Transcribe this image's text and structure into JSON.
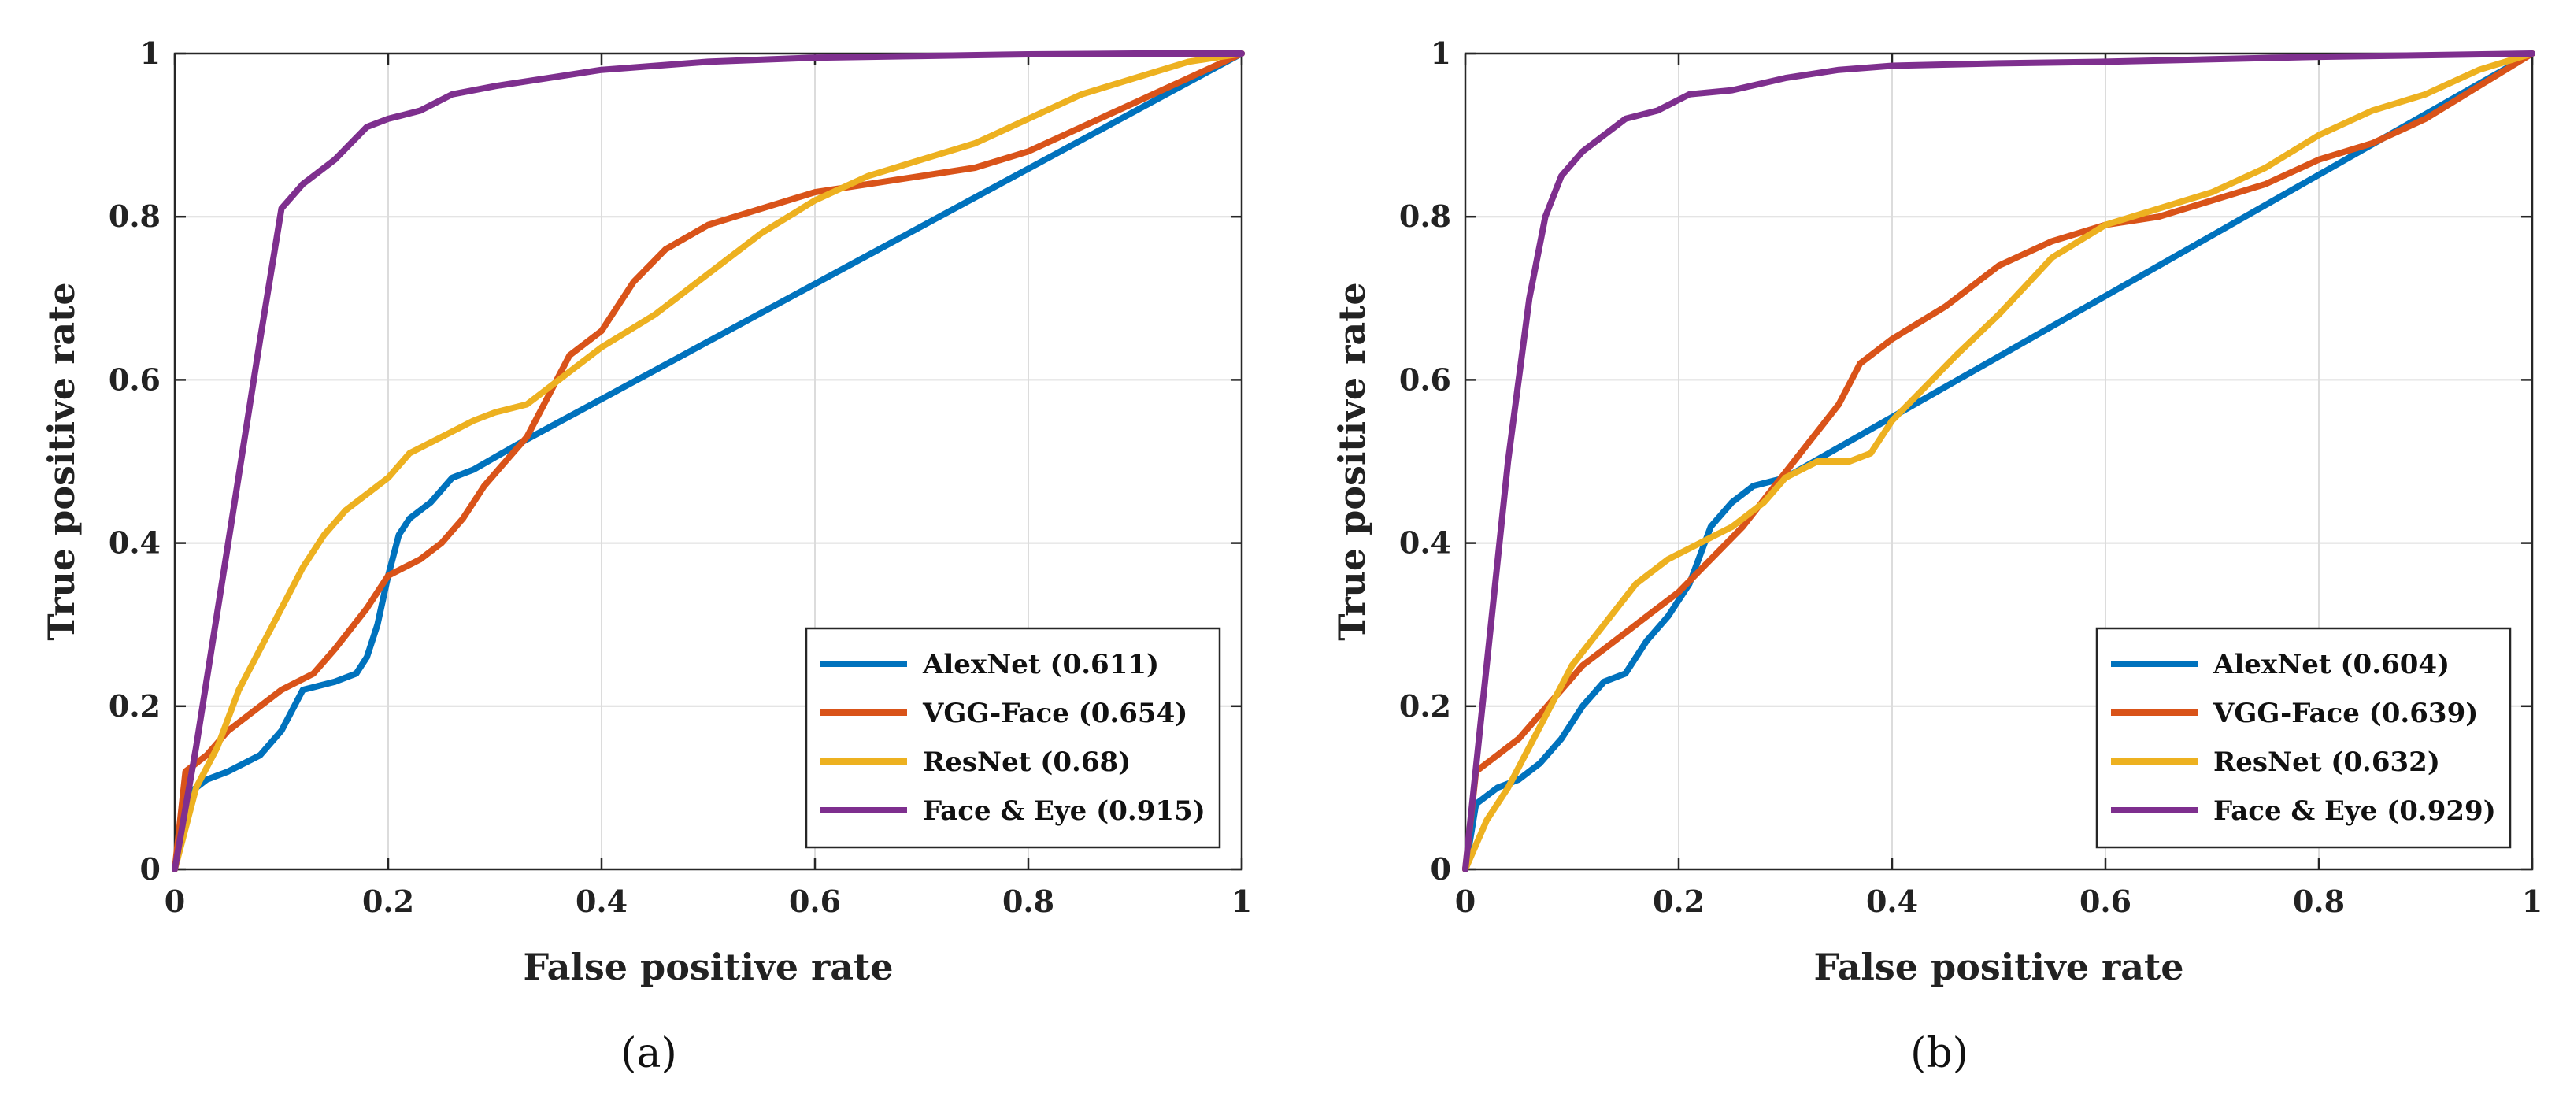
{
  "chart_data": [
    {
      "type": "line",
      "panel_label": "(a)",
      "xlabel": "False positive rate",
      "ylabel": "True positive rate",
      "xlim": [
        0,
        1
      ],
      "ylim": [
        0,
        1
      ],
      "xticks": [
        0,
        0.2,
        0.4,
        0.6,
        0.8,
        1
      ],
      "yticks": [
        0,
        0.2,
        0.4,
        0.6,
        0.8,
        1
      ],
      "xtick_labels": [
        "0",
        "0.2",
        "0.4",
        "0.6",
        "0.8",
        "1"
      ],
      "ytick_labels": [
        "0",
        "0.2",
        "0.4",
        "0.6",
        "0.8",
        "1"
      ],
      "grid": true,
      "legend_position": "bottom-right",
      "series": [
        {
          "name": "AlexNet (0.611)",
          "color": "#0072BD",
          "x": [
            0,
            0.01,
            0.03,
            0.05,
            0.08,
            0.1,
            0.12,
            0.15,
            0.17,
            0.18,
            0.19,
            0.2,
            0.21,
            0.22,
            0.24,
            0.26,
            0.28,
            0.32,
            1.0
          ],
          "y": [
            0,
            0.09,
            0.11,
            0.12,
            0.14,
            0.17,
            0.22,
            0.23,
            0.24,
            0.26,
            0.3,
            0.36,
            0.41,
            0.43,
            0.45,
            0.48,
            0.49,
            0.52,
            1.0
          ]
        },
        {
          "name": "VGG-Face (0.654)",
          "color": "#D95319",
          "x": [
            0,
            0.01,
            0.03,
            0.05,
            0.08,
            0.1,
            0.13,
            0.15,
            0.18,
            0.2,
            0.23,
            0.25,
            0.27,
            0.29,
            0.31,
            0.33,
            0.35,
            0.37,
            0.4,
            0.43,
            0.46,
            0.5,
            0.55,
            0.6,
            0.65,
            0.7,
            0.75,
            0.8,
            0.85,
            0.9,
            0.95,
            1.0
          ],
          "y": [
            0,
            0.12,
            0.14,
            0.17,
            0.2,
            0.22,
            0.24,
            0.27,
            0.32,
            0.36,
            0.38,
            0.4,
            0.43,
            0.47,
            0.5,
            0.53,
            0.58,
            0.63,
            0.66,
            0.72,
            0.76,
            0.79,
            0.81,
            0.83,
            0.84,
            0.85,
            0.86,
            0.88,
            0.91,
            0.94,
            0.97,
            1.0
          ]
        },
        {
          "name": "ResNet (0.68)",
          "color": "#EDB120",
          "x": [
            0,
            0.02,
            0.04,
            0.06,
            0.08,
            0.1,
            0.12,
            0.14,
            0.16,
            0.18,
            0.2,
            0.22,
            0.25,
            0.28,
            0.3,
            0.33,
            0.35,
            0.38,
            0.4,
            0.45,
            0.5,
            0.55,
            0.6,
            0.65,
            0.7,
            0.75,
            0.8,
            0.85,
            0.9,
            0.95,
            1.0
          ],
          "y": [
            0,
            0.1,
            0.15,
            0.22,
            0.27,
            0.32,
            0.37,
            0.41,
            0.44,
            0.46,
            0.48,
            0.51,
            0.53,
            0.55,
            0.56,
            0.57,
            0.59,
            0.62,
            0.64,
            0.68,
            0.73,
            0.78,
            0.82,
            0.85,
            0.87,
            0.89,
            0.92,
            0.95,
            0.97,
            0.99,
            1.0
          ]
        },
        {
          "name": "Face & Eye (0.915)",
          "color": "#7E2F8E",
          "x": [
            0,
            0.02,
            0.05,
            0.08,
            0.1,
            0.12,
            0.15,
            0.18,
            0.2,
            0.23,
            0.26,
            0.3,
            0.35,
            0.4,
            0.5,
            0.6,
            0.7,
            0.8,
            0.9,
            1.0
          ],
          "y": [
            0,
            0.15,
            0.4,
            0.65,
            0.81,
            0.84,
            0.87,
            0.91,
            0.92,
            0.93,
            0.95,
            0.96,
            0.97,
            0.98,
            0.99,
            0.995,
            0.997,
            0.999,
            1.0,
            1.0
          ]
        }
      ]
    },
    {
      "type": "line",
      "panel_label": "(b)",
      "xlabel": "False positive rate",
      "ylabel": "True positive rate",
      "xlim": [
        0,
        1
      ],
      "ylim": [
        0,
        1
      ],
      "xticks": [
        0,
        0.2,
        0.4,
        0.6,
        0.8,
        1
      ],
      "yticks": [
        0,
        0.2,
        0.4,
        0.6,
        0.8,
        1
      ],
      "xtick_labels": [
        "0",
        "0.2",
        "0.4",
        "0.6",
        "0.8",
        "1"
      ],
      "ytick_labels": [
        "0",
        "0.2",
        "0.4",
        "0.6",
        "0.8",
        "1"
      ],
      "grid": true,
      "legend_position": "bottom-right",
      "series": [
        {
          "name": "AlexNet (0.604)",
          "color": "#0072BD",
          "x": [
            0,
            0.01,
            0.03,
            0.05,
            0.07,
            0.09,
            0.11,
            0.13,
            0.15,
            0.17,
            0.19,
            0.21,
            0.23,
            0.25,
            0.27,
            0.3,
            1.0
          ],
          "y": [
            0,
            0.08,
            0.1,
            0.11,
            0.13,
            0.16,
            0.2,
            0.23,
            0.24,
            0.28,
            0.31,
            0.35,
            0.42,
            0.45,
            0.47,
            0.48,
            1.0
          ]
        },
        {
          "name": "VGG-Face (0.639)",
          "color": "#D95319",
          "x": [
            0,
            0.01,
            0.03,
            0.05,
            0.07,
            0.09,
            0.11,
            0.13,
            0.15,
            0.17,
            0.2,
            0.23,
            0.26,
            0.29,
            0.32,
            0.35,
            0.37,
            0.4,
            0.45,
            0.5,
            0.55,
            0.6,
            0.65,
            0.7,
            0.75,
            0.8,
            0.85,
            0.9,
            0.95,
            1.0
          ],
          "y": [
            0,
            0.12,
            0.14,
            0.16,
            0.19,
            0.22,
            0.25,
            0.27,
            0.29,
            0.31,
            0.34,
            0.38,
            0.42,
            0.47,
            0.52,
            0.57,
            0.62,
            0.65,
            0.69,
            0.74,
            0.77,
            0.79,
            0.8,
            0.82,
            0.84,
            0.87,
            0.89,
            0.92,
            0.96,
            1.0
          ]
        },
        {
          "name": "ResNet (0.632)",
          "color": "#EDB120",
          "x": [
            0,
            0.02,
            0.04,
            0.06,
            0.08,
            0.1,
            0.13,
            0.16,
            0.19,
            0.22,
            0.25,
            0.28,
            0.3,
            0.33,
            0.36,
            0.38,
            0.4,
            0.43,
            0.46,
            0.5,
            0.55,
            0.6,
            0.65,
            0.7,
            0.75,
            0.8,
            0.85,
            0.9,
            0.95,
            1.0
          ],
          "y": [
            0,
            0.06,
            0.1,
            0.15,
            0.2,
            0.25,
            0.3,
            0.35,
            0.38,
            0.4,
            0.42,
            0.45,
            0.48,
            0.5,
            0.5,
            0.51,
            0.55,
            0.59,
            0.63,
            0.68,
            0.75,
            0.79,
            0.81,
            0.83,
            0.86,
            0.9,
            0.93,
            0.95,
            0.98,
            1.0
          ]
        },
        {
          "name": "Face & Eye (0.929)",
          "color": "#7E2F8E",
          "x": [
            0,
            0.02,
            0.04,
            0.06,
            0.075,
            0.09,
            0.11,
            0.13,
            0.15,
            0.18,
            0.21,
            0.25,
            0.3,
            0.35,
            0.4,
            0.5,
            0.6,
            0.7,
            0.8,
            0.9,
            1.0
          ],
          "y": [
            0,
            0.25,
            0.5,
            0.7,
            0.8,
            0.85,
            0.88,
            0.9,
            0.92,
            0.93,
            0.95,
            0.955,
            0.97,
            0.98,
            0.985,
            0.988,
            0.99,
            0.993,
            0.996,
            0.998,
            1.0
          ]
        }
      ]
    }
  ]
}
